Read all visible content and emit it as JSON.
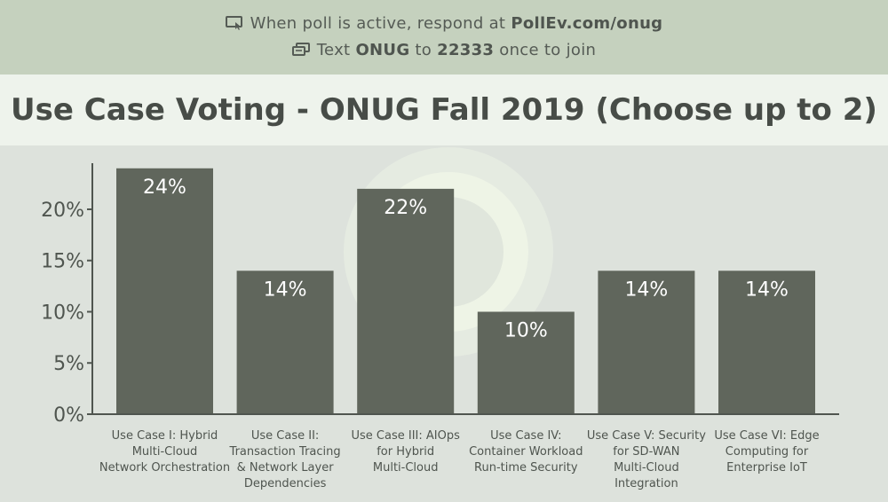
{
  "poll": {
    "line1_prefix": "When poll is active, respond at ",
    "line1_link": "PollEv.com/onug",
    "line2_prefix": "Text ",
    "line2_code": "ONUG",
    "line2_mid": " to ",
    "line2_number": "22333",
    "line2_suffix": " once to join",
    "icon1": "screen-cursor-icon",
    "icon2": "chat-bubble-icon"
  },
  "colors": {
    "bar": "#60665c",
    "header": "#c5d1be",
    "title_band": "#eef3ec",
    "plot_bg": "#dde2dc"
  },
  "chart_data": {
    "type": "bar",
    "title": "Use Case Voting - ONUG Fall 2019 (Choose up to 2)",
    "categories": [
      [
        "Use Case I: Hybrid",
        "Multi-Cloud",
        "Network Orchestration"
      ],
      [
        "Use Case II:",
        "Transaction Tracing",
        "& Network Layer",
        "Dependencies"
      ],
      [
        "Use Case III: AIOps",
        "for Hybrid",
        "Multi-Cloud"
      ],
      [
        "Use Case IV:",
        "Container Workload",
        "Run-time Security"
      ],
      [
        "Use Case V: Security",
        "for SD-WAN",
        "Multi-Cloud",
        "Integration"
      ],
      [
        "Use Case VI: Edge",
        "Computing for",
        "Enterprise IoT"
      ]
    ],
    "values": [
      24,
      14,
      22,
      10,
      14,
      14
    ],
    "value_labels": [
      "24%",
      "14%",
      "22%",
      "10%",
      "14%",
      "14%"
    ],
    "yticks": [
      0,
      5,
      10,
      15,
      20
    ],
    "ytick_labels": [
      "0%",
      "5%",
      "10%",
      "15%",
      "20%"
    ],
    "ylim": [
      0,
      24.5
    ],
    "grid": false,
    "legend": "none"
  }
}
